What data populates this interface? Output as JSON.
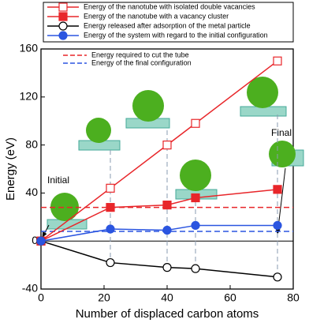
{
  "chart_data": {
    "type": "line",
    "x_label": "Number of displaced carbon atoms",
    "y_label": "Energy (eV)",
    "x": [
      0,
      22,
      40,
      49,
      75
    ],
    "series": [
      {
        "name": "Energy of the nanotube with isolated double vacancies",
        "color": "#e8262a",
        "marker": "square-open",
        "values": [
          0,
          44,
          80,
          98,
          150
        ]
      },
      {
        "name": "Energy of the nanotube with a vacancy cluster",
        "color": "#e8262a",
        "marker": "square-filled",
        "values": [
          0,
          28,
          30,
          36,
          43
        ]
      },
      {
        "name": "Energy released after adsorption of the metal particle",
        "color": "#000000",
        "marker": "circle-open",
        "values": [
          0,
          -18,
          -22,
          -23,
          -30
        ]
      },
      {
        "name": "Energy of the system with regard to the initial configuration",
        "color": "#2b55e0",
        "marker": "circle-filled",
        "values": [
          0,
          10,
          9,
          13,
          13
        ]
      }
    ],
    "reference_lines": [
      {
        "name": "Energy required to cut the tube",
        "color": "#e8262a",
        "value": 28
      },
      {
        "name": "Energy of the final configuration",
        "color": "#2b55e0",
        "value": 8
      }
    ],
    "annotations": [
      "Initial",
      "Final"
    ],
    "xlim": [
      0,
      80
    ],
    "xticks": [
      0,
      20,
      40,
      60,
      80
    ],
    "ylim": [
      -40,
      160
    ],
    "yticks": [
      -40,
      0,
      40,
      80,
      120,
      160
    ]
  }
}
